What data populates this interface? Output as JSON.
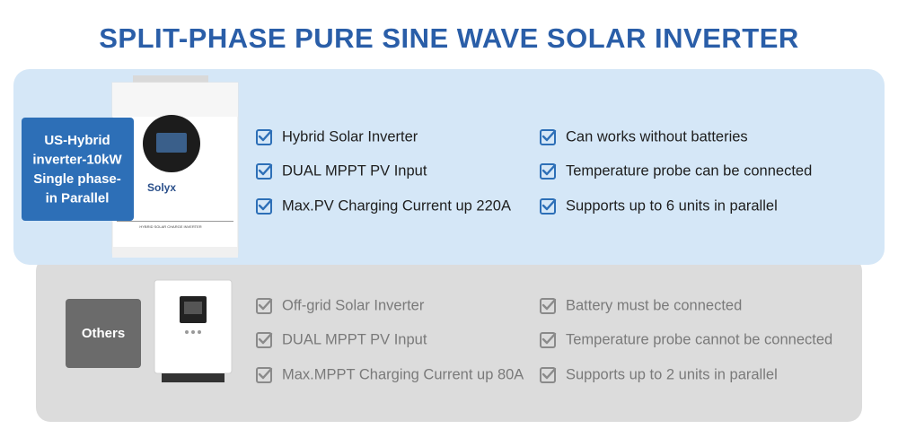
{
  "title": "SPLIT-PHASE PURE SINE WAVE SOLAR INVERTER",
  "product": {
    "badge_lines": [
      "US-Hybrid",
      "inverter-10kW",
      "Single phase-",
      "in Parallel"
    ],
    "brand": "Solyx",
    "device_label": "HYBRID SOLAR CHARGE INVERTER",
    "features": [
      "Hybrid Solar Inverter",
      "DUAL MPPT PV Input",
      "Max.PV Charging Current up 220A",
      "Can works without batteries",
      "Temperature probe can be connected",
      "Supports up to 6 units in parallel"
    ]
  },
  "others": {
    "label": "Others",
    "features": [
      "Off-grid Solar Inverter",
      "DUAL MPPT PV Input",
      "Max.MPPT Charging Current up 80A",
      "Battery must be connected",
      "Temperature probe cannot be connected",
      "Supports up to 2 units in parallel"
    ]
  }
}
